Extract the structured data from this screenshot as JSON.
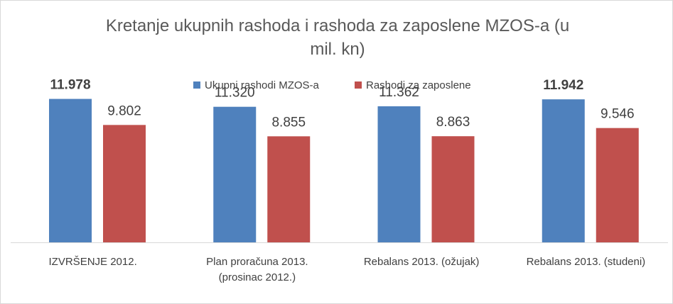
{
  "chart_data": {
    "type": "bar",
    "title": "Kretanje ukupnih rashoda i rashoda za zaposlene MZOS-a (u mil. kn)",
    "title_lines": [
      "Kretanje ukupnih rashoda i rashoda za zaposlene MZOS-a (u",
      "mil. kn)"
    ],
    "categories": [
      [
        "IZVRŠENJE 2012."
      ],
      [
        "Plan proračuna 2013.",
        "(prosinac 2012.)"
      ],
      [
        "Rebalans 2013. (ožujak)"
      ],
      [
        "Rebalans 2013. (studeni)"
      ]
    ],
    "series": [
      {
        "name": "Ukupni rashodi MZOS-a",
        "color": "#4f81bd",
        "values": [
          11978,
          11320,
          11362,
          11942
        ],
        "labels": [
          "11.978",
          "11.320",
          "11.362",
          "11.942"
        ],
        "bold_labels": [
          true,
          false,
          false,
          true
        ]
      },
      {
        "name": "Rashodi za zaposlene",
        "color": "#c0504d",
        "values": [
          9802,
          8855,
          8863,
          9546
        ],
        "labels": [
          "9.802",
          "8.855",
          "8.863",
          "9.546"
        ],
        "bold_labels": [
          false,
          false,
          false,
          false
        ]
      }
    ],
    "ylim": [
      0,
      14000
    ],
    "legend_position": "top",
    "grid": false,
    "xlabel": "",
    "ylabel": ""
  }
}
